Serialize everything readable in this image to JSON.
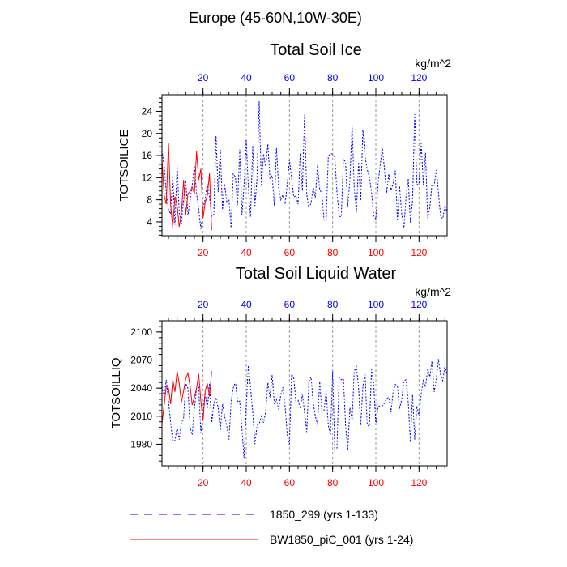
{
  "figure_title": "Europe (45-60N,10W-30E)",
  "units": "kg/m^2",
  "legend": [
    {
      "label": "1850_299 (yrs 1-133)",
      "color": "#0000ff",
      "style": "dashed"
    },
    {
      "label": "BW1850_piC_001 (yrs 1-24)",
      "color": "#ff0000",
      "style": "solid"
    }
  ],
  "colors": {
    "series_a": "#0000ff",
    "series_b": "#ff0000",
    "grid": "#9a9a9a",
    "axis": "#000000"
  },
  "chart_data": [
    {
      "type": "line",
      "title": "Total Soil Ice",
      "ylabel": "TOTSOILICE",
      "units": "kg/m^2",
      "xlim": [
        1,
        133
      ],
      "ylim": [
        1.5,
        27
      ],
      "yticks": [
        4,
        8,
        12,
        16,
        20,
        24
      ],
      "top_xticks": [
        20,
        40,
        60,
        80,
        100,
        120
      ],
      "bottom_xticks": [
        20,
        40,
        60,
        80,
        100,
        120
      ],
      "series": [
        {
          "name": "1850_299 (yrs 1-133)",
          "x_start": 1,
          "values": [
            16.9,
            14.1,
            9.0,
            6.2,
            5.4,
            12.4,
            3.5,
            14.2,
            5.8,
            3.7,
            8.2,
            11.5,
            5.2,
            7.9,
            10.7,
            14.1,
            9.1,
            6.3,
            2.7,
            6.5,
            8.2,
            10.8,
            8.5,
            5.0,
            5.3,
            19.6,
            9.4,
            17.1,
            6.2,
            10.9,
            7.5,
            8.1,
            2.9,
            12.7,
            12.1,
            7.1,
            17.1,
            5.3,
            10.6,
            18.9,
            9.9,
            4.9,
            17.8,
            6.9,
            11.8,
            25.8,
            10.4,
            16.3,
            14.0,
            18.1,
            11.9,
            12.4,
            6.9,
            17.4,
            10.2,
            8.0,
            8.9,
            7.2,
            10.9,
            15.2,
            11.9,
            8.5,
            8.7,
            7.2,
            16.4,
            9.6,
            23.4,
            9.0,
            6.5,
            7.4,
            10.3,
            8.4,
            14.3,
            9.8,
            9.2,
            4.4,
            4.2,
            15.9,
            16.3,
            16.3,
            15.6,
            9.4,
            5.0,
            4.9,
            15.4,
            14.8,
            6.8,
            11.6,
            21.4,
            10.2,
            5.7,
            14.8,
            7.8,
            20.6,
            15.8,
            13.5,
            12.2,
            9.3,
            5.1,
            4.5,
            10.8,
            14.2,
            17.4,
            13.5,
            9.2,
            12.7,
            9.7,
            10.9,
            13.3,
            4.4,
            10.5,
            5.4,
            2.9,
            8.5,
            11.8,
            3.8,
            7.8,
            23.5,
            10.7,
            11.0,
            18.2,
            10.7,
            16.5,
            4.7,
            6.7,
            10.8,
            10.6,
            13.4,
            9.3,
            4.9,
            4.6,
            7.0,
            5.6
          ]
        },
        {
          "name": "BW1850_piC_001 (yrs 1-24)",
          "x_start": 1,
          "values": [
            15.3,
            8.8,
            7.2,
            18.3,
            7.1,
            3.0,
            8.6,
            7.0,
            3.1,
            5.6,
            11.6,
            5.3,
            9.1,
            9.5,
            10.3,
            9.1,
            16.8,
            11.6,
            13.6,
            4.7,
            7.5,
            8.8,
            12.8,
            2.5
          ]
        }
      ]
    },
    {
      "type": "line",
      "title": "Total Soil Liquid Water",
      "ylabel": "TOTSOILLIQ",
      "units": "kg/m^2",
      "xlim": [
        1,
        133
      ],
      "ylim": [
        1957,
        2112
      ],
      "yticks": [
        1980,
        2010,
        2040,
        2070,
        2100
      ],
      "top_xticks": [
        20,
        40,
        60,
        80,
        100,
        120
      ],
      "bottom_xticks": [
        20,
        40,
        60,
        80,
        100,
        120
      ],
      "series": [
        {
          "name": "1850_299 (yrs 1-133)",
          "x_start": 1,
          "values": [
            2042,
            2031,
            2049,
            2026,
            2003,
            1983,
            1984,
            1998,
            1985,
            2003,
            2008,
            2045,
            2040,
            1998,
            1990,
            2018,
            2040,
            2041,
            1992,
            2015,
            2035,
            2018,
            2045,
            2003,
            2023,
            2030,
            2019,
            1995,
            2023,
            2010,
            2000,
            1985,
            2025,
            2040,
            2047,
            2025,
            2026,
            1997,
            1965,
            2020,
            2066,
            2040,
            2015,
            1980,
            2000,
            2002,
            2010,
            2003,
            2015,
            2046,
            2030,
            2054,
            2023,
            2028,
            2017,
            2033,
            2041,
            2020,
            1990,
            1980,
            2055,
            2050,
            2026,
            2027,
            2018,
            2034,
            2014,
            1993,
            2047,
            2052,
            2024,
            2010,
            2001,
            2047,
            2017,
            2016,
            2037,
            2000,
            1990,
            2058,
            1973,
            1976,
            2052,
            2049,
            2050,
            2000,
            1974,
            2019,
            2006,
            2058,
            2063,
            2041,
            2000,
            2041,
            2056,
            2001,
            1999,
            2060,
            2046,
            2001,
            2020,
            2021,
            2021,
            2024,
            2029,
            2030,
            2014,
            2036,
            2044,
            2042,
            2018,
            2028,
            2048,
            2049,
            2025,
            1982,
            2033,
            1985,
            2021,
            2010,
            2034,
            2049,
            2041,
            2060,
            2052,
            2069,
            2036,
            2049,
            2071,
            2054,
            2048,
            2064,
            2054
          ]
        },
        {
          "name": "BW1850_piC_001 (yrs 1-24)",
          "x_start": 1,
          "values": [
            2002,
            2022,
            2042,
            2040,
            2023,
            2049,
            2036,
            2058,
            2045,
            2025,
            2037,
            2050,
            2056,
            2042,
            2022,
            2030,
            2040,
            2055,
            2026,
            2005,
            2037,
            2045,
            2031,
            2058
          ]
        }
      ]
    }
  ]
}
